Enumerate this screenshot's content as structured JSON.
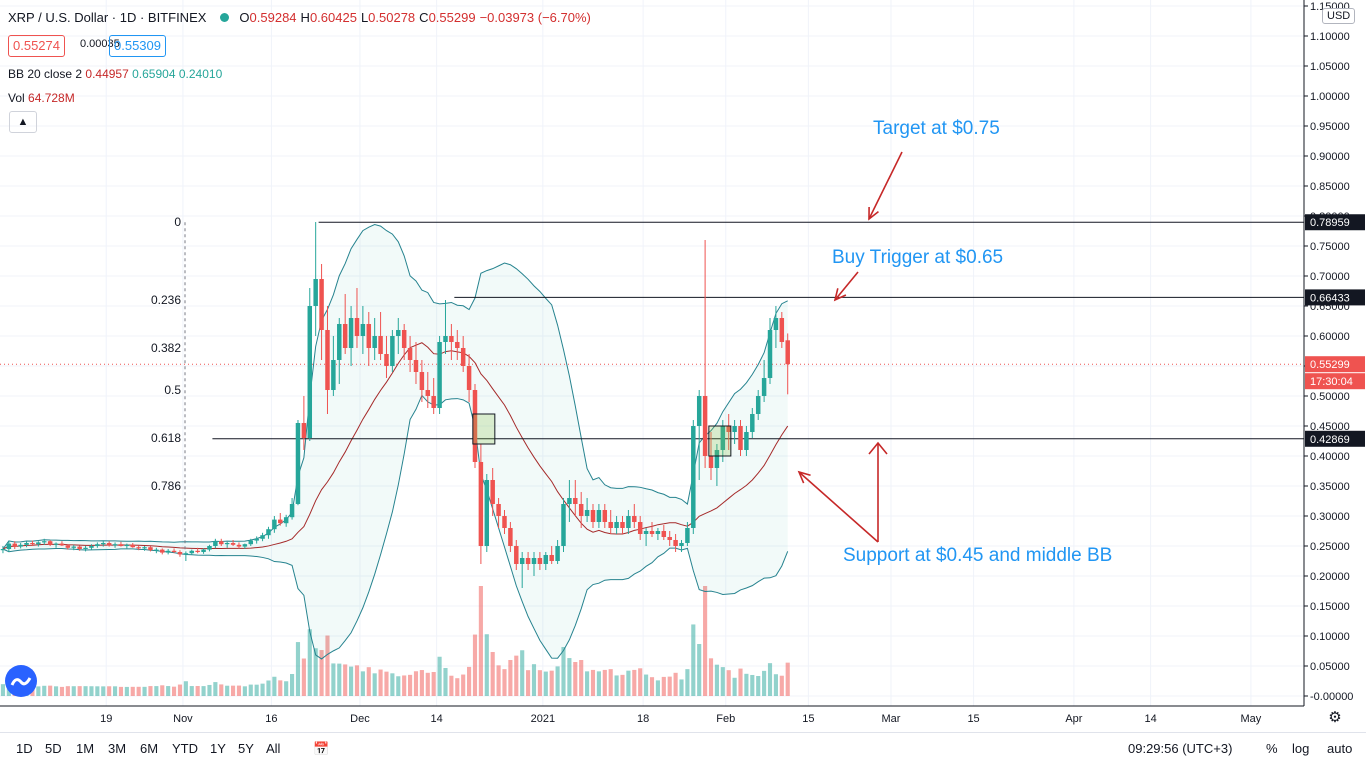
{
  "header": {
    "symbol": "XRP / U.S. Dollar · 1D · BITFINEX",
    "open_label": "O",
    "open": "0.59284",
    "high_label": "H",
    "high": "0.60425",
    "low_label": "L",
    "low": "0.50278",
    "close_label": "C",
    "close": "0.55299",
    "change": "−0.03973 (−6.70%)"
  },
  "trade": {
    "sell_price": "0.55274",
    "spread": "0.00035",
    "buy_price": "0.55309"
  },
  "indicators": {
    "bb_label": "BB 20 close 2",
    "bb_mid": "0.44957",
    "bb_upper": "0.65904",
    "bb_lower": "0.24010",
    "vol_label": "Vol",
    "vol_value": "64.728M"
  },
  "currency": "USD",
  "collapse_icon": "chevron-up-icon",
  "chart_data": {
    "type": "candlestick",
    "y_axis": {
      "ticks": [
        "-0.00000",
        "0.05000",
        "0.10000",
        "0.15000",
        "0.20000",
        "0.25000",
        "0.30000",
        "0.35000",
        "0.40000",
        "0.45000",
        "0.50000",
        "0.55000",
        "0.60000",
        "0.65000",
        "0.70000",
        "0.75000",
        "0.80000",
        "0.85000",
        "0.90000",
        "0.95000",
        "1.00000",
        "1.05000",
        "1.10000",
        "1.15000"
      ],
      "tick_values": [
        0,
        0.05,
        0.1,
        0.15,
        0.2,
        0.25,
        0.3,
        0.35,
        0.4,
        0.45,
        0.5,
        0.55,
        0.6,
        0.65,
        0.7,
        0.75,
        0.8,
        0.85,
        0.9,
        0.95,
        1.0,
        1.05,
        1.1,
        1.15
      ],
      "range": [
        0,
        1.15
      ]
    },
    "x_axis": {
      "start": "2020-10-01",
      "end": "2021-05-10",
      "ticks": [
        {
          "label": "19",
          "date": "2020-10-19"
        },
        {
          "label": "Nov",
          "date": "2020-11-01"
        },
        {
          "label": "16",
          "date": "2020-11-16"
        },
        {
          "label": "Dec",
          "date": "2020-12-01"
        },
        {
          "label": "14",
          "date": "2020-12-14"
        },
        {
          "label": "2021",
          "date": "2021-01-01"
        },
        {
          "label": "18",
          "date": "2021-01-18"
        },
        {
          "label": "Feb",
          "date": "2021-02-01"
        },
        {
          "label": "15",
          "date": "2021-02-15"
        },
        {
          "label": "Mar",
          "date": "2021-03-01"
        },
        {
          "label": "15",
          "date": "2021-03-15"
        },
        {
          "label": "Apr",
          "date": "2021-04-01"
        },
        {
          "label": "14",
          "date": "2021-04-14"
        },
        {
          "label": "May",
          "date": "2021-05-01"
        }
      ]
    },
    "last_price": {
      "value": 0.55299,
      "label": "0.55299",
      "countdown": "17:30:04"
    },
    "horizontal_lines": [
      {
        "value": 0.78959,
        "label": "0.78959",
        "from_date": "2020-11-24"
      },
      {
        "value": 0.66433,
        "label": "0.66433",
        "from_date": "2020-12-17"
      },
      {
        "value": 0.42869,
        "label": "0.42869",
        "from_date": "2020-11-06"
      }
    ],
    "fibonacci": [
      {
        "ratio": "0",
        "value": 0.78959
      },
      {
        "ratio": "0.236",
        "value": 0.66
      },
      {
        "ratio": "0.382",
        "value": 0.58
      },
      {
        "ratio": "0.5",
        "value": 0.51
      },
      {
        "ratio": "0.618",
        "value": 0.43
      },
      {
        "ratio": "0.786",
        "value": 0.35
      }
    ],
    "annotations": [
      {
        "text": "Target at $0.75",
        "color": "#2196f3"
      },
      {
        "text": "Buy Trigger at $0.65",
        "color": "#2196f3"
      },
      {
        "text": "Support at $0.45 and middle BB",
        "color": "#2196f3"
      }
    ],
    "candles_start": "2020-10-01",
    "candles": [
      [
        0.243,
        0.25,
        0.238,
        0.245
      ],
      [
        0.245,
        0.258,
        0.24,
        0.254
      ],
      [
        0.254,
        0.258,
        0.245,
        0.249
      ],
      [
        0.249,
        0.255,
        0.246,
        0.252
      ],
      [
        0.252,
        0.258,
        0.248,
        0.255
      ],
      [
        0.255,
        0.259,
        0.25,
        0.253
      ],
      [
        0.253,
        0.258,
        0.249,
        0.256
      ],
      [
        0.256,
        0.262,
        0.252,
        0.258
      ],
      [
        0.258,
        0.26,
        0.25,
        0.252
      ],
      [
        0.252,
        0.256,
        0.247,
        0.254
      ],
      [
        0.254,
        0.258,
        0.25,
        0.251
      ],
      [
        0.251,
        0.253,
        0.244,
        0.247
      ],
      [
        0.247,
        0.252,
        0.243,
        0.249
      ],
      [
        0.249,
        0.251,
        0.242,
        0.245
      ],
      [
        0.245,
        0.25,
        0.241,
        0.247
      ],
      [
        0.247,
        0.253,
        0.244,
        0.25
      ],
      [
        0.25,
        0.256,
        0.247,
        0.253
      ],
      [
        0.253,
        0.258,
        0.249,
        0.255
      ],
      [
        0.255,
        0.258,
        0.249,
        0.251
      ],
      [
        0.251,
        0.256,
        0.247,
        0.253
      ],
      [
        0.253,
        0.257,
        0.249,
        0.25
      ],
      [
        0.25,
        0.254,
        0.246,
        0.252
      ],
      [
        0.252,
        0.255,
        0.247,
        0.248
      ],
      [
        0.248,
        0.251,
        0.243,
        0.246
      ],
      [
        0.246,
        0.25,
        0.242,
        0.248
      ],
      [
        0.248,
        0.25,
        0.241,
        0.243
      ],
      [
        0.243,
        0.247,
        0.238,
        0.244
      ],
      [
        0.244,
        0.246,
        0.236,
        0.239
      ],
      [
        0.239,
        0.245,
        0.236,
        0.242
      ],
      [
        0.242,
        0.246,
        0.238,
        0.24
      ],
      [
        0.24,
        0.243,
        0.232,
        0.236
      ],
      [
        0.236,
        0.241,
        0.225,
        0.238
      ],
      [
        0.238,
        0.244,
        0.235,
        0.242
      ],
      [
        0.242,
        0.247,
        0.238,
        0.24
      ],
      [
        0.24,
        0.246,
        0.237,
        0.244
      ],
      [
        0.244,
        0.252,
        0.241,
        0.25
      ],
      [
        0.25,
        0.262,
        0.246,
        0.258
      ],
      [
        0.258,
        0.262,
        0.25,
        0.253
      ],
      [
        0.253,
        0.257,
        0.247,
        0.255
      ],
      [
        0.255,
        0.26,
        0.25,
        0.252
      ],
      [
        0.252,
        0.256,
        0.246,
        0.249
      ],
      [
        0.249,
        0.254,
        0.245,
        0.253
      ],
      [
        0.253,
        0.262,
        0.25,
        0.259
      ],
      [
        0.259,
        0.266,
        0.254,
        0.262
      ],
      [
        0.262,
        0.272,
        0.258,
        0.268
      ],
      [
        0.268,
        0.282,
        0.262,
        0.278
      ],
      [
        0.278,
        0.3,
        0.272,
        0.294
      ],
      [
        0.294,
        0.305,
        0.284,
        0.288
      ],
      [
        0.288,
        0.302,
        0.282,
        0.298
      ],
      [
        0.298,
        0.33,
        0.294,
        0.32
      ],
      [
        0.32,
        0.46,
        0.318,
        0.455
      ],
      [
        0.455,
        0.5,
        0.41,
        0.43
      ],
      [
        0.43,
        0.68,
        0.425,
        0.65
      ],
      [
        0.65,
        0.79,
        0.6,
        0.695
      ],
      [
        0.695,
        0.72,
        0.56,
        0.61
      ],
      [
        0.61,
        0.65,
        0.47,
        0.51
      ],
      [
        0.51,
        0.6,
        0.5,
        0.56
      ],
      [
        0.56,
        0.63,
        0.52,
        0.62
      ],
      [
        0.62,
        0.67,
        0.57,
        0.58
      ],
      [
        0.58,
        0.65,
        0.55,
        0.63
      ],
      [
        0.63,
        0.68,
        0.58,
        0.6
      ],
      [
        0.6,
        0.65,
        0.57,
        0.62
      ],
      [
        0.62,
        0.64,
        0.55,
        0.58
      ],
      [
        0.58,
        0.63,
        0.56,
        0.6
      ],
      [
        0.6,
        0.64,
        0.56,
        0.57
      ],
      [
        0.57,
        0.6,
        0.53,
        0.55
      ],
      [
        0.55,
        0.61,
        0.54,
        0.6
      ],
      [
        0.6,
        0.63,
        0.57,
        0.61
      ],
      [
        0.61,
        0.62,
        0.56,
        0.58
      ],
      [
        0.58,
        0.6,
        0.54,
        0.56
      ],
      [
        0.56,
        0.59,
        0.52,
        0.54
      ],
      [
        0.54,
        0.56,
        0.49,
        0.51
      ],
      [
        0.51,
        0.54,
        0.48,
        0.5
      ],
      [
        0.5,
        0.53,
        0.47,
        0.48
      ],
      [
        0.48,
        0.6,
        0.47,
        0.59
      ],
      [
        0.59,
        0.66,
        0.57,
        0.6
      ],
      [
        0.6,
        0.62,
        0.56,
        0.59
      ],
      [
        0.59,
        0.61,
        0.56,
        0.58
      ],
      [
        0.58,
        0.6,
        0.54,
        0.55
      ],
      [
        0.55,
        0.57,
        0.49,
        0.51
      ],
      [
        0.51,
        0.52,
        0.38,
        0.39
      ],
      [
        0.39,
        0.42,
        0.22,
        0.25
      ],
      [
        0.25,
        0.37,
        0.24,
        0.36
      ],
      [
        0.36,
        0.38,
        0.3,
        0.32
      ],
      [
        0.32,
        0.33,
        0.28,
        0.3
      ],
      [
        0.3,
        0.31,
        0.27,
        0.28
      ],
      [
        0.28,
        0.29,
        0.24,
        0.25
      ],
      [
        0.25,
        0.26,
        0.21,
        0.22
      ],
      [
        0.22,
        0.24,
        0.18,
        0.23
      ],
      [
        0.23,
        0.24,
        0.21,
        0.22
      ],
      [
        0.22,
        0.24,
        0.2,
        0.23
      ],
      [
        0.23,
        0.24,
        0.21,
        0.22
      ],
      [
        0.22,
        0.24,
        0.21,
        0.235
      ],
      [
        0.235,
        0.25,
        0.22,
        0.225
      ],
      [
        0.225,
        0.26,
        0.22,
        0.25
      ],
      [
        0.25,
        0.33,
        0.24,
        0.32
      ],
      [
        0.32,
        0.36,
        0.29,
        0.33
      ],
      [
        0.33,
        0.36,
        0.3,
        0.32
      ],
      [
        0.32,
        0.34,
        0.28,
        0.3
      ],
      [
        0.3,
        0.33,
        0.29,
        0.31
      ],
      [
        0.31,
        0.32,
        0.28,
        0.29
      ],
      [
        0.29,
        0.32,
        0.28,
        0.31
      ],
      [
        0.31,
        0.32,
        0.28,
        0.29
      ],
      [
        0.29,
        0.31,
        0.27,
        0.28
      ],
      [
        0.28,
        0.3,
        0.27,
        0.29
      ],
      [
        0.29,
        0.3,
        0.27,
        0.28
      ],
      [
        0.28,
        0.31,
        0.27,
        0.3
      ],
      [
        0.3,
        0.32,
        0.28,
        0.29
      ],
      [
        0.29,
        0.3,
        0.26,
        0.27
      ],
      [
        0.27,
        0.28,
        0.25,
        0.275
      ],
      [
        0.275,
        0.29,
        0.265,
        0.27
      ],
      [
        0.27,
        0.28,
        0.26,
        0.275
      ],
      [
        0.275,
        0.285,
        0.26,
        0.265
      ],
      [
        0.265,
        0.275,
        0.25,
        0.26
      ],
      [
        0.26,
        0.27,
        0.24,
        0.25
      ],
      [
        0.25,
        0.26,
        0.24,
        0.255
      ],
      [
        0.255,
        0.29,
        0.25,
        0.28
      ],
      [
        0.28,
        0.46,
        0.27,
        0.45
      ],
      [
        0.45,
        0.51,
        0.36,
        0.5
      ],
      [
        0.5,
        0.76,
        0.38,
        0.4
      ],
      [
        0.4,
        0.44,
        0.36,
        0.38
      ],
      [
        0.38,
        0.42,
        0.35,
        0.41
      ],
      [
        0.41,
        0.46,
        0.39,
        0.45
      ],
      [
        0.45,
        0.47,
        0.41,
        0.44
      ],
      [
        0.44,
        0.46,
        0.42,
        0.45
      ],
      [
        0.45,
        0.46,
        0.4,
        0.41
      ],
      [
        0.41,
        0.45,
        0.4,
        0.44
      ],
      [
        0.44,
        0.48,
        0.43,
        0.47
      ],
      [
        0.47,
        0.51,
        0.46,
        0.5
      ],
      [
        0.5,
        0.56,
        0.49,
        0.53
      ],
      [
        0.53,
        0.63,
        0.52,
        0.61
      ],
      [
        0.61,
        0.65,
        0.58,
        0.63
      ],
      [
        0.63,
        0.64,
        0.58,
        0.59
      ],
      [
        0.59284,
        0.60425,
        0.50278,
        0.55299
      ]
    ]
  }
}
